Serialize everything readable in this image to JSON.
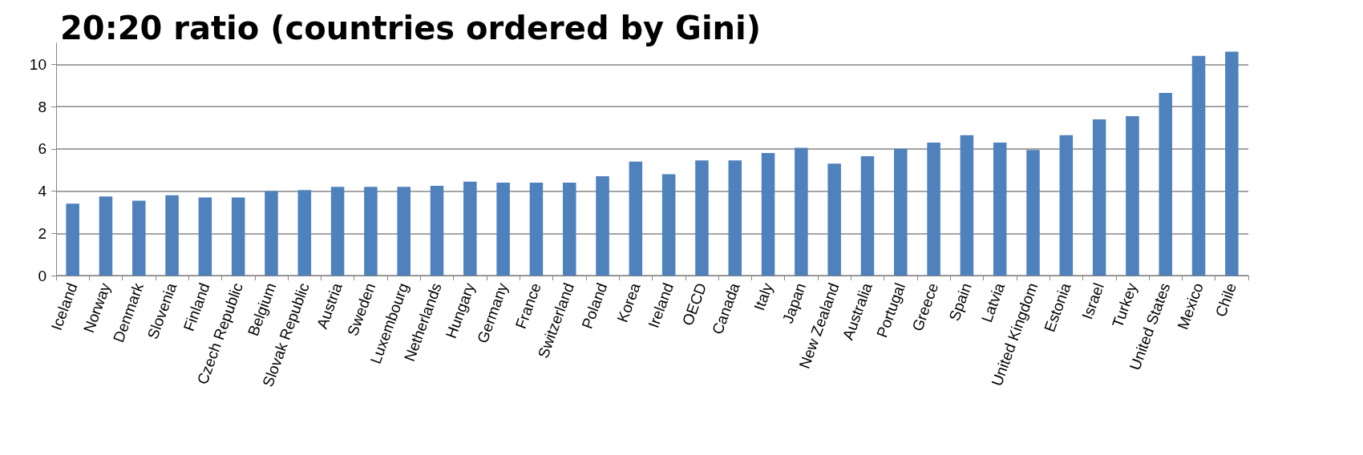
{
  "chart_data": {
    "type": "bar",
    "title": "20:20 ratio (countries ordered by Gini)",
    "categories": [
      "Iceland",
      "Norway",
      "Denmark",
      "Slovenia",
      "Finland",
      "Czech Republic",
      "Belgium",
      "Slovak Republic",
      "Austria",
      "Sweden",
      "Luxembourg",
      "Netherlands",
      "Hungary",
      "Germany",
      "France",
      "Switzerland",
      "Poland",
      "Korea",
      "Ireland",
      "OECD",
      "Canada",
      "Italy",
      "Japan",
      "New Zealand",
      "Australia",
      "Portugal",
      "Greece",
      "Spain",
      "Latvia",
      "United Kingdom",
      "Estonia",
      "Israel",
      "Turkey",
      "United States",
      "Mexico",
      "Chile"
    ],
    "values": [
      3.4,
      3.75,
      3.55,
      3.8,
      3.7,
      3.7,
      4.0,
      4.05,
      4.2,
      4.2,
      4.2,
      4.25,
      4.45,
      4.4,
      4.4,
      4.4,
      4.7,
      5.4,
      4.8,
      5.45,
      5.45,
      5.8,
      6.05,
      5.3,
      5.65,
      6.0,
      6.3,
      6.65,
      6.3,
      5.95,
      6.65,
      7.4,
      7.55,
      8.65,
      10.4,
      10.6
    ],
    "color": "#4f81bd",
    "ylim": [
      0,
      11
    ],
    "yticks": [
      0,
      2,
      4,
      6,
      8,
      10
    ],
    "grid": "y"
  }
}
